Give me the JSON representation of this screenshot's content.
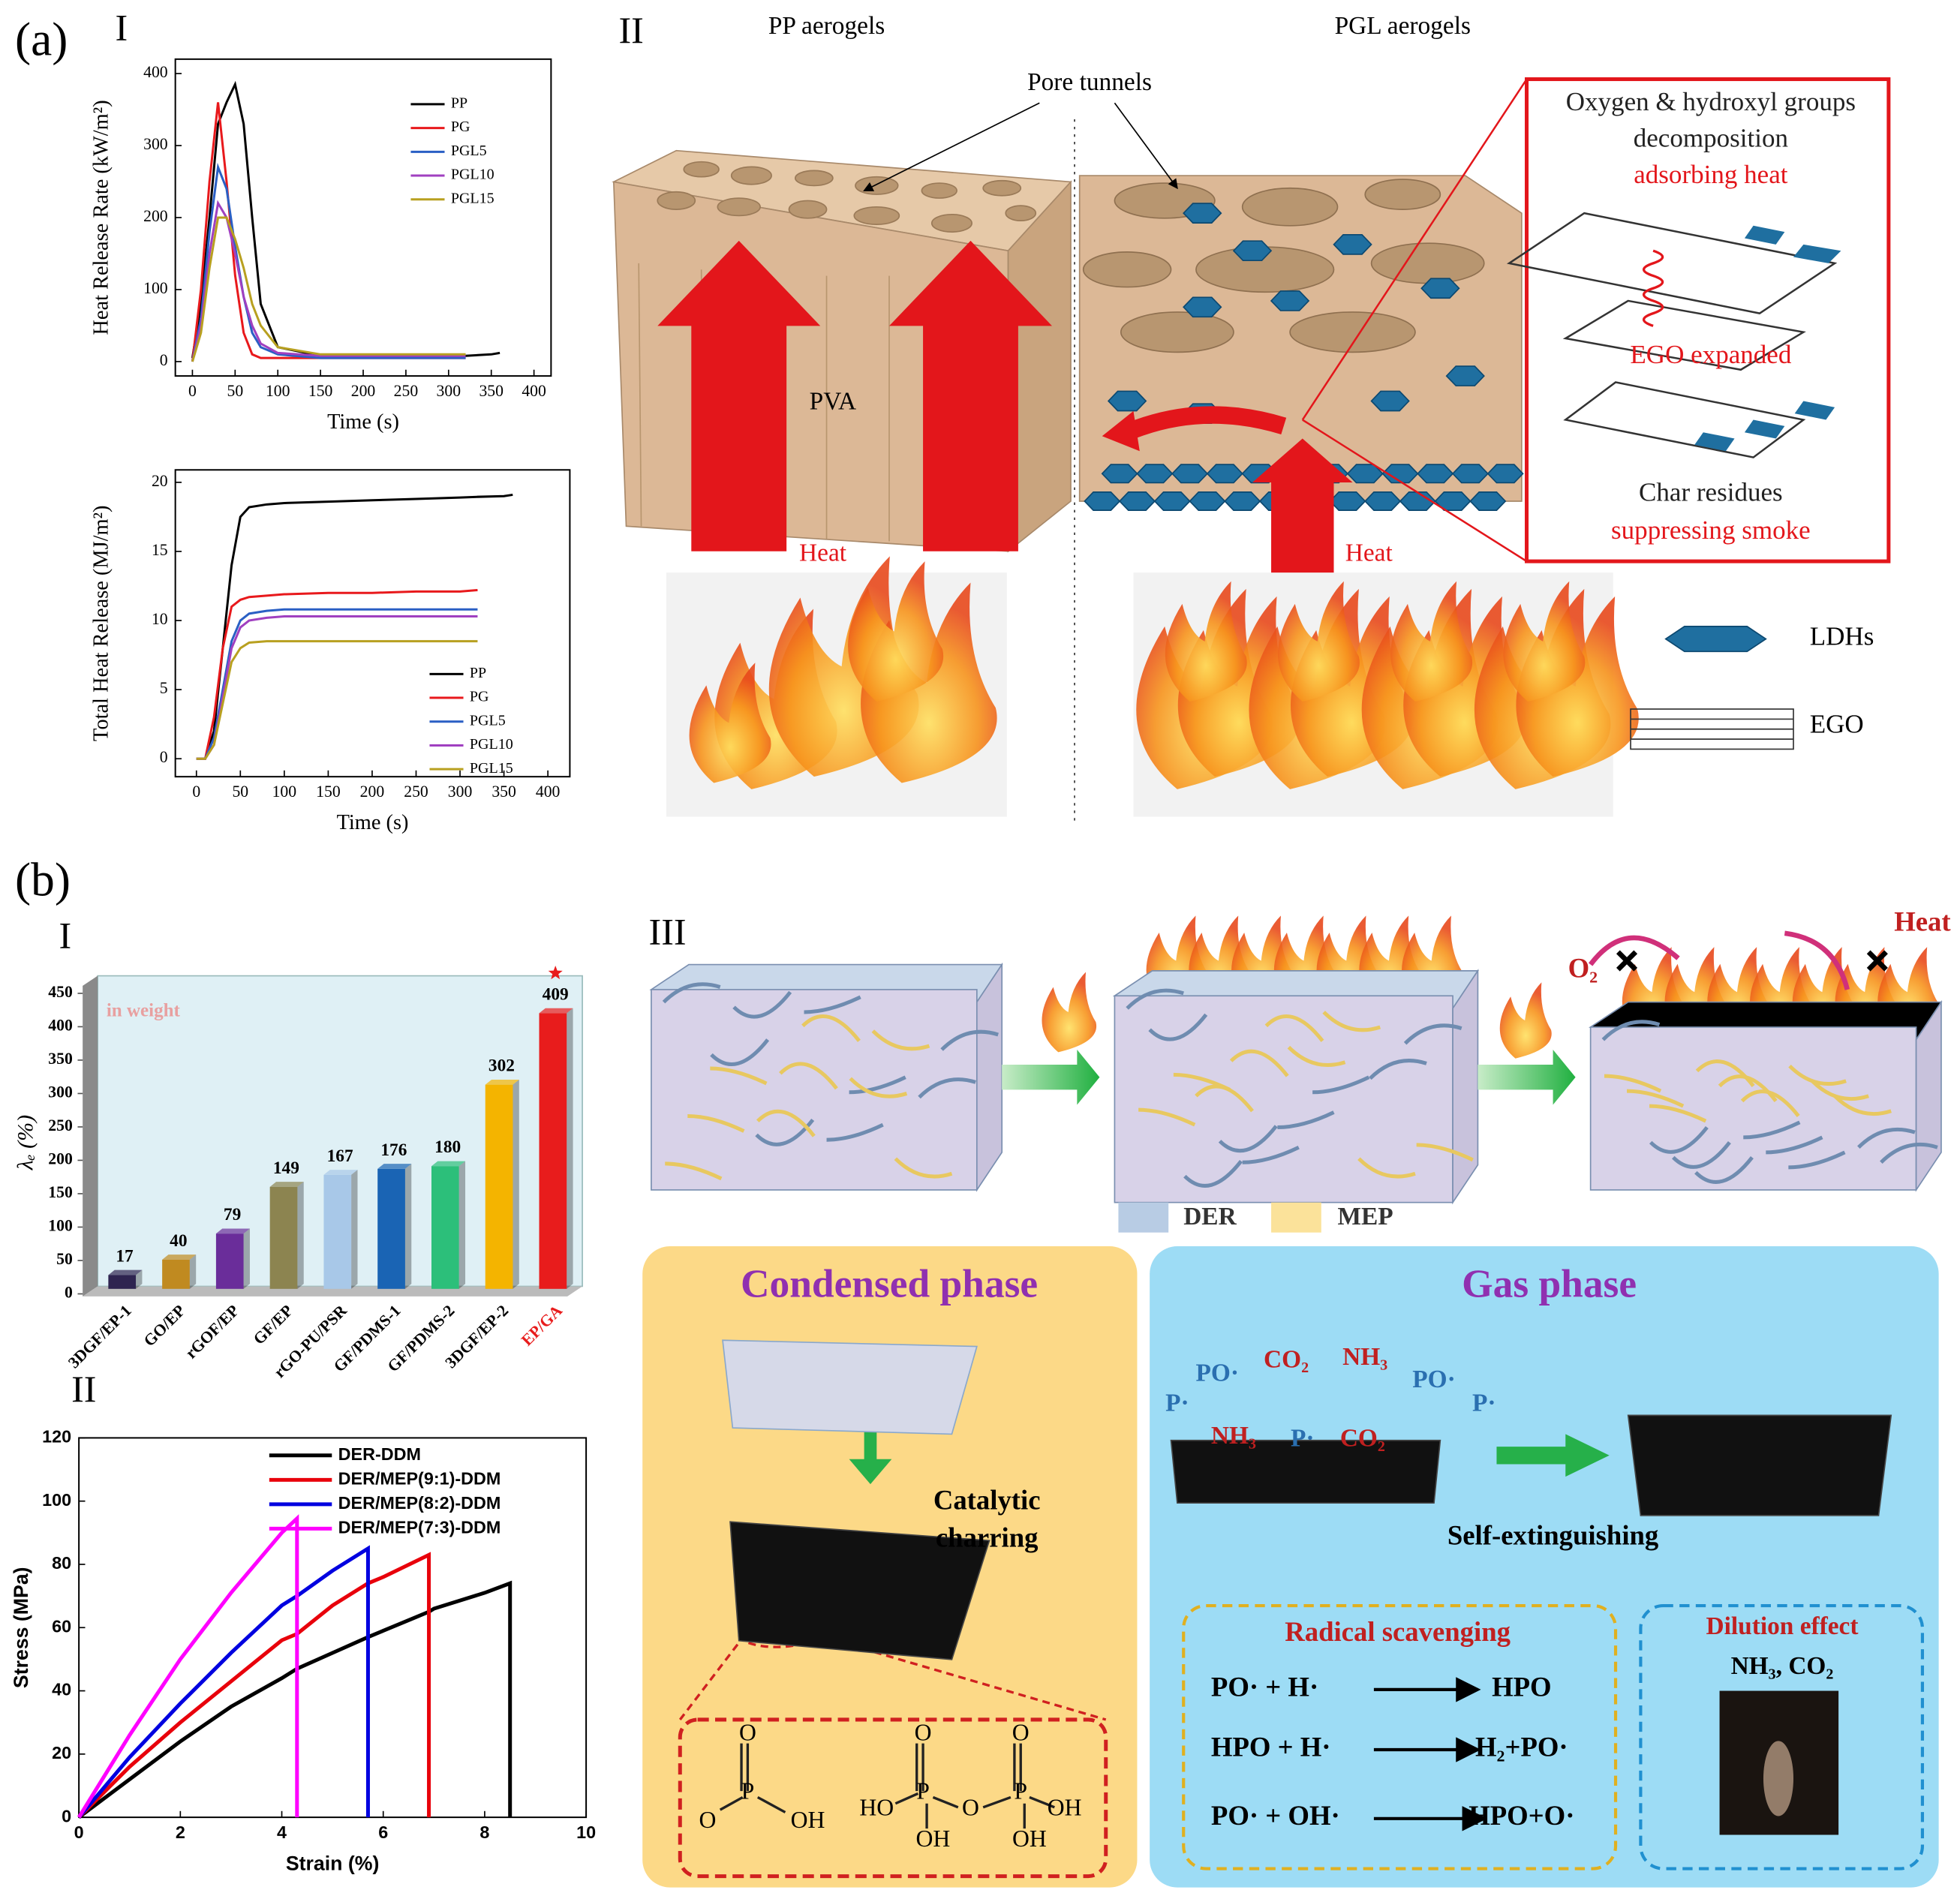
{
  "chart_data": [
    {
      "type": "line",
      "xlabel": "Time (s)",
      "ylabel": "Heat Release Rate (kW/m²)",
      "x": [
        0,
        10,
        20,
        30,
        40,
        50,
        60,
        70,
        80,
        100,
        150,
        200,
        250,
        300,
        320,
        350,
        360
      ],
      "series": [
        {
          "name": "PP",
          "color": "#000000",
          "values": [
            5,
            80,
            200,
            330,
            360,
            385,
            330,
            200,
            80,
            20,
            8,
            8,
            8,
            8,
            8,
            10,
            12
          ]
        },
        {
          "name": "PG",
          "color": "#e8191c",
          "values": [
            0,
            100,
            250,
            360,
            250,
            120,
            40,
            10,
            5,
            5,
            5,
            5,
            5,
            5,
            5,
            null,
            null
          ]
        },
        {
          "name": "PGL5",
          "color": "#2a5fc4",
          "values": [
            0,
            60,
            180,
            270,
            240,
            160,
            90,
            40,
            20,
            10,
            5,
            5,
            5,
            5,
            5,
            null,
            null
          ]
        },
        {
          "name": "PGL10",
          "color": "#a040c0",
          "values": [
            0,
            50,
            150,
            220,
            200,
            150,
            90,
            50,
            25,
            12,
            8,
            8,
            8,
            8,
            8,
            null,
            null
          ]
        },
        {
          "name": "PGL15",
          "color": "#b8a020",
          "values": [
            0,
            40,
            130,
            200,
            200,
            170,
            130,
            80,
            50,
            20,
            10,
            10,
            10,
            10,
            10,
            null,
            null
          ]
        }
      ],
      "xlim": [
        -20,
        420
      ],
      "ylim": [
        -20,
        420
      ],
      "xticks": [
        0,
        50,
        100,
        150,
        200,
        250,
        300,
        350,
        400
      ],
      "yticks": [
        0,
        100,
        200,
        300,
        400
      ],
      "legend": "upper right"
    },
    {
      "type": "line",
      "xlabel": "Time (s)",
      "ylabel": "Total Heat Release (MJ/m²)",
      "x": [
        0,
        10,
        20,
        30,
        40,
        50,
        60,
        80,
        100,
        150,
        200,
        250,
        300,
        320,
        350,
        360
      ],
      "series": [
        {
          "name": "PP",
          "color": "#000000",
          "values": [
            0,
            0,
            2,
            8,
            14,
            17.5,
            18.2,
            18.4,
            18.5,
            18.6,
            18.7,
            18.8,
            18.9,
            18.95,
            19,
            19.1
          ]
        },
        {
          "name": "PG",
          "color": "#e8191c",
          "values": [
            0,
            0,
            3,
            8,
            11,
            11.5,
            11.7,
            11.8,
            11.9,
            12,
            12,
            12.1,
            12.1,
            12.2,
            null,
            null
          ]
        },
        {
          "name": "PGL5",
          "color": "#2a5fc4",
          "values": [
            0,
            0,
            1.5,
            5,
            8.5,
            10,
            10.5,
            10.7,
            10.8,
            10.8,
            10.8,
            10.8,
            10.8,
            10.8,
            null,
            null
          ]
        },
        {
          "name": "PGL10",
          "color": "#a040c0",
          "values": [
            0,
            0,
            1,
            4.5,
            8,
            9.5,
            10,
            10.2,
            10.3,
            10.3,
            10.3,
            10.3,
            10.3,
            10.3,
            null,
            null
          ]
        },
        {
          "name": "PGL15",
          "color": "#b8a020",
          "values": [
            0,
            0,
            1,
            4,
            7,
            8,
            8.4,
            8.5,
            8.5,
            8.5,
            8.5,
            8.5,
            8.5,
            8.5,
            null,
            null
          ]
        }
      ],
      "xlim": [
        -24,
        425
      ],
      "ylim": [
        -1.3,
        20.9
      ],
      "xticks": [
        0,
        50,
        100,
        150,
        200,
        250,
        300,
        350,
        400
      ],
      "yticks": [
        0,
        5,
        10,
        15,
        20
      ],
      "legend": "lower right"
    },
    {
      "type": "bar",
      "ylabel": "λₑ (%)",
      "annotation": "in weight",
      "categories": [
        "3DGF/EP-1",
        "GO/EP",
        "rGOF/EP",
        "GF/EP",
        "rGO-PU/PSR",
        "GF/PDMS-1",
        "GF/PDMS-2",
        "3DGF/EP-2",
        "EP/GA"
      ],
      "values": [
        17,
        40,
        79,
        149,
        167,
        176,
        180,
        302,
        409
      ],
      "colors": [
        "#2e2450",
        "#c08a20",
        "#6a2d9a",
        "#8c8450",
        "#a8c8e8",
        "#1a64b4",
        "#2cbf7a",
        "#f4b400",
        "#e81c1c"
      ],
      "label_colors": [
        "#000000",
        "#000000",
        "#000000",
        "#000000",
        "#000000",
        "#000000",
        "#000000",
        "#000000",
        "#e81c1c"
      ],
      "ylim": [
        0,
        450
      ],
      "yticks": [
        0,
        50,
        100,
        150,
        200,
        250,
        300,
        350,
        400,
        450
      ],
      "grid": false
    },
    {
      "type": "line",
      "xlabel": "Strain (%)",
      "ylabel": "Stress (MPa)",
      "x": [
        0,
        1,
        2,
        3,
        4,
        4.3,
        5,
        5.7,
        6,
        6.9,
        7,
        8,
        8.5
      ],
      "series": [
        {
          "name": "DER-DDM",
          "color": "#000000",
          "values": [
            0,
            12,
            24,
            35,
            44,
            47,
            52,
            57,
            59,
            65,
            66,
            71,
            74
          ]
        },
        {
          "name": "DER/MEP(9:1)-DDM",
          "color": "#e8000b",
          "values": [
            0,
            16,
            30,
            43,
            56,
            58,
            67,
            74,
            76,
            83,
            null,
            null,
            null
          ]
        },
        {
          "name": "DER/MEP(8:2)-DDM",
          "color": "#0000e0",
          "values": [
            0,
            19,
            36,
            52,
            67,
            70,
            78,
            85,
            null,
            null,
            null,
            null,
            null
          ]
        },
        {
          "name": "DER/MEP(7:3)-DDM",
          "color": "#ff00ff",
          "values": [
            0,
            26,
            50,
            71,
            90,
            94.5,
            null,
            null,
            null,
            null,
            null,
            null,
            null
          ]
        }
      ],
      "xlim": [
        0,
        10
      ],
      "ylim": [
        0,
        120
      ],
      "xticks": [
        0,
        2,
        4,
        6,
        8,
        10
      ],
      "yticks": [
        0,
        20,
        40,
        60,
        80,
        100,
        120
      ],
      "legend": "upper right",
      "fracture": true
    }
  ],
  "panel_a": {
    "label": "(a)",
    "sub1": "I",
    "sub2": "II",
    "pp_title": "PP aerogels",
    "pgl_title": "PGL aerogels",
    "pore": "Pore tunnels",
    "pva": "PVA",
    "heat_left": "Heat",
    "heat_right": "Heat",
    "box": [
      "Oxygen & hydroxyl groups",
      "decomposition",
      "adsorbing heat",
      "EGO expanded",
      "Char residues",
      "suppressing smoke"
    ],
    "legend": [
      "LDHs",
      "EGO"
    ]
  },
  "panel_b": {
    "label": "(b)",
    "sub1": "I",
    "sub2": "II",
    "sub3": "III",
    "legend": [
      "DER",
      "MEP"
    ],
    "o2": "O₂",
    "heat": "Heat",
    "condensed": {
      "title": "Condensed phase",
      "text": [
        "Catalytic",
        "charring"
      ],
      "chem": [
        "O",
        "P",
        "O",
        "OH",
        "HO",
        "P",
        "O",
        "O",
        "P",
        "O",
        "OH",
        "OH",
        "OH"
      ]
    },
    "gas": {
      "title": "Gas phase",
      "species": [
        "PO·",
        "CO₂",
        "NH₃",
        "PO·",
        "P·",
        "P·",
        "NH₃",
        "P·",
        "CO₂"
      ],
      "result": "Self-extinguishing",
      "radical": "Radical scavenging",
      "reactions": [
        [
          "PO· + H·",
          "HPO"
        ],
        [
          "HPO + H·",
          "H₂+PO·"
        ],
        [
          "PO· + OH·",
          "HPO+O·"
        ]
      ],
      "dilution": "Dilution effect",
      "dilution_gas": "NH₃, CO₂"
    }
  }
}
